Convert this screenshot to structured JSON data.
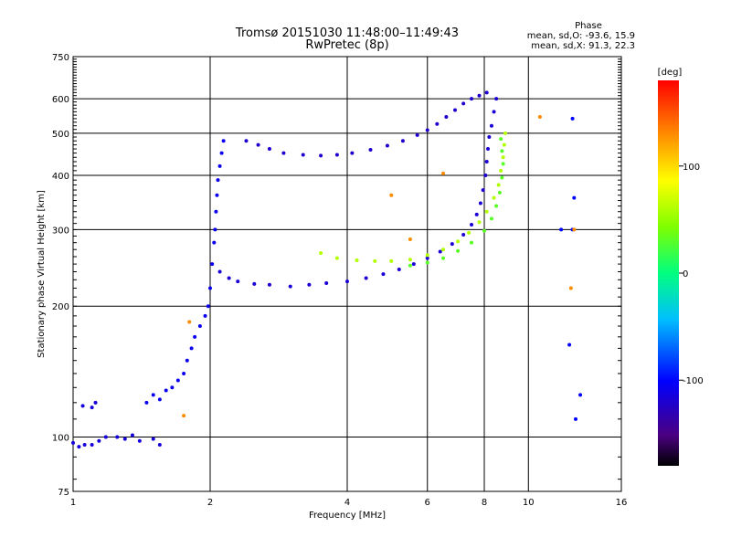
{
  "chart_data": {
    "type": "scatter",
    "title": "Tromsø 20151030 11:48:00–11:49:43",
    "subtitle": "RwPretec (8p)",
    "xlabel": "Frequency [MHz]",
    "ylabel": "Stationary phase Virtual Height [km]",
    "x_scale": "log2",
    "y_scale": "log",
    "xlim": [
      1,
      16
    ],
    "ylim": [
      75,
      750
    ],
    "x_ticks": [
      1,
      2,
      4,
      6,
      8,
      10,
      16
    ],
    "y_ticks": [
      75,
      100,
      200,
      300,
      400,
      500,
      600,
      750
    ],
    "grid": true,
    "stats": {
      "heading": "Phase",
      "line1": "mean, sd,O: -93.6, 15.9",
      "line2": "mean, sd,X:  91.3, 22.3"
    },
    "colorbar": {
      "label": "[deg]",
      "range": [
        -180,
        180
      ],
      "ticks": [
        100,
        0,
        -100
      ],
      "tick_labels": [
        "100",
        "0",
        "-100"
      ],
      "colors": [
        "#000000",
        "#4b0082",
        "#0000ff",
        "#00bfff",
        "#00ff7f",
        "#7fff00",
        "#ffff00",
        "#ff8c00",
        "#ff0000"
      ]
    },
    "series": [
      {
        "phase": -115,
        "points": [
          [
            1.0,
            97
          ],
          [
            1.03,
            95
          ],
          [
            1.06,
            96
          ],
          [
            1.1,
            96
          ],
          [
            1.14,
            98
          ],
          [
            1.18,
            100
          ],
          [
            1.25,
            100
          ],
          [
            1.3,
            99
          ],
          [
            1.35,
            101
          ],
          [
            1.4,
            98
          ],
          [
            1.5,
            99
          ],
          [
            1.55,
            96
          ],
          [
            1.05,
            118
          ],
          [
            1.1,
            117
          ],
          [
            1.12,
            120
          ]
        ]
      },
      {
        "phase": -108,
        "points": [
          [
            1.45,
            120
          ],
          [
            1.5,
            125
          ],
          [
            1.55,
            122
          ],
          [
            1.6,
            128
          ],
          [
            1.65,
            130
          ],
          [
            1.7,
            135
          ],
          [
            1.75,
            140
          ],
          [
            1.78,
            150
          ],
          [
            1.82,
            160
          ],
          [
            1.85,
            170
          ],
          [
            1.9,
            180
          ],
          [
            1.95,
            190
          ],
          [
            1.98,
            200
          ],
          [
            2.0,
            220
          ],
          [
            2.02,
            250
          ],
          [
            2.04,
            280
          ],
          [
            2.05,
            300
          ],
          [
            2.06,
            330
          ],
          [
            2.07,
            360
          ],
          [
            2.08,
            390
          ],
          [
            2.1,
            420
          ],
          [
            2.12,
            450
          ],
          [
            2.14,
            480
          ]
        ]
      },
      {
        "phase": -118,
        "points": [
          [
            2.1,
            240
          ],
          [
            2.2,
            232
          ],
          [
            2.3,
            228
          ],
          [
            2.5,
            225
          ],
          [
            2.7,
            224
          ],
          [
            3.0,
            222
          ],
          [
            3.3,
            224
          ],
          [
            3.6,
            226
          ],
          [
            4.0,
            228
          ],
          [
            4.4,
            232
          ],
          [
            4.8,
            237
          ],
          [
            5.2,
            243
          ],
          [
            5.6,
            250
          ],
          [
            6.0,
            258
          ],
          [
            6.4,
            267
          ],
          [
            6.8,
            278
          ],
          [
            7.2,
            292
          ],
          [
            7.5,
            308
          ],
          [
            7.7,
            325
          ],
          [
            7.85,
            345
          ],
          [
            7.95,
            370
          ],
          [
            8.05,
            400
          ],
          [
            8.1,
            430
          ],
          [
            8.15,
            460
          ],
          [
            8.2,
            490
          ],
          [
            8.3,
            520
          ],
          [
            8.4,
            560
          ],
          [
            8.5,
            600
          ]
        ]
      },
      {
        "phase": -120,
        "points": [
          [
            2.4,
            480
          ],
          [
            2.55,
            470
          ],
          [
            2.7,
            460
          ],
          [
            2.9,
            450
          ],
          [
            3.2,
            446
          ],
          [
            3.5,
            444
          ],
          [
            3.8,
            446
          ],
          [
            4.1,
            450
          ],
          [
            4.5,
            458
          ],
          [
            4.9,
            468
          ],
          [
            5.3,
            480
          ],
          [
            5.7,
            495
          ],
          [
            6.0,
            508
          ],
          [
            6.3,
            525
          ],
          [
            6.6,
            545
          ],
          [
            6.9,
            565
          ],
          [
            7.2,
            585
          ],
          [
            7.5,
            600
          ],
          [
            7.8,
            610
          ],
          [
            8.1,
            620
          ]
        ]
      },
      {
        "phase": 60,
        "points": [
          [
            3.5,
            265
          ],
          [
            3.8,
            258
          ],
          [
            4.2,
            255
          ],
          [
            4.6,
            254
          ],
          [
            5.0,
            254
          ],
          [
            5.5,
            256
          ],
          [
            6.0,
            262
          ],
          [
            6.5,
            270
          ],
          [
            7.0,
            282
          ],
          [
            7.4,
            295
          ],
          [
            7.8,
            312
          ],
          [
            8.1,
            330
          ],
          [
            8.4,
            355
          ],
          [
            8.6,
            380
          ],
          [
            8.7,
            410
          ],
          [
            8.8,
            440
          ],
          [
            8.85,
            470
          ],
          [
            8.9,
            500
          ]
        ]
      },
      {
        "phase": 30,
        "points": [
          [
            5.5,
            248
          ],
          [
            6.0,
            252
          ],
          [
            6.5,
            258
          ],
          [
            7.0,
            268
          ],
          [
            7.5,
            280
          ],
          [
            8.0,
            298
          ],
          [
            8.3,
            318
          ],
          [
            8.5,
            340
          ],
          [
            8.65,
            365
          ],
          [
            8.75,
            395
          ],
          [
            8.8,
            425
          ],
          [
            8.75,
            455
          ],
          [
            8.7,
            485
          ]
        ]
      },
      {
        "phase": -100,
        "points": [
          [
            12.5,
            540
          ],
          [
            12.6,
            355
          ],
          [
            12.7,
            110
          ],
          [
            12.5,
            300
          ],
          [
            11.8,
            300
          ],
          [
            12.3,
            163
          ],
          [
            13.0,
            125
          ]
        ]
      },
      {
        "phase": 130,
        "points": [
          [
            5.0,
            360
          ],
          [
            5.5,
            285
          ],
          [
            6.5,
            404
          ],
          [
            10.6,
            545
          ],
          [
            12.4,
            220
          ],
          [
            12.6,
            300
          ],
          [
            1.75,
            112
          ],
          [
            1.8,
            184
          ]
        ]
      }
    ]
  }
}
